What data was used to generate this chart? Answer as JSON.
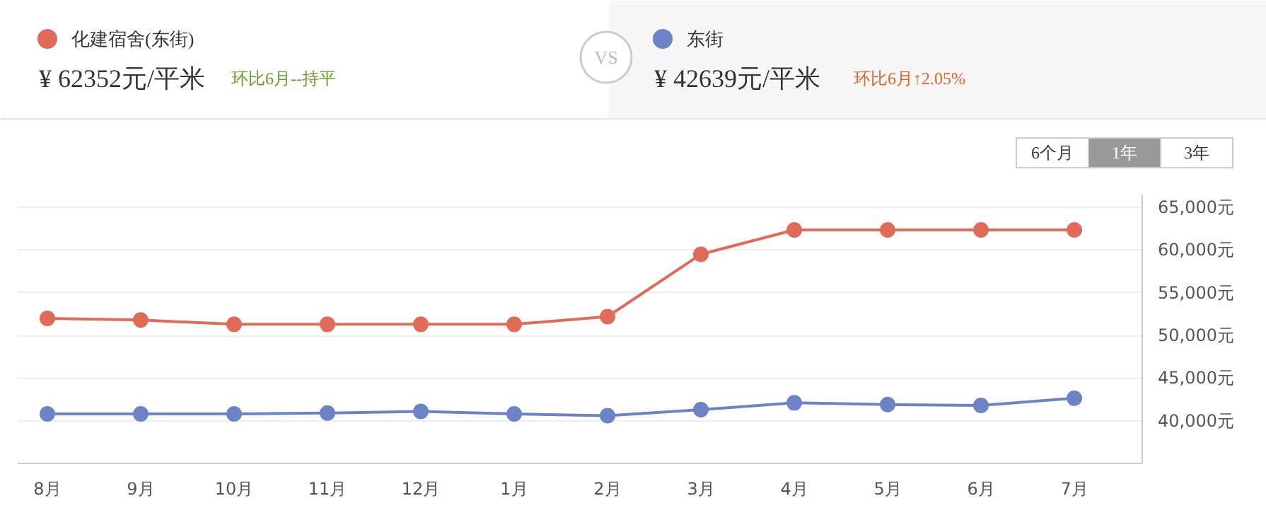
{
  "chart_data": {
    "type": "line",
    "categories": [
      "8月",
      "9月",
      "10月",
      "11月",
      "12月",
      "1月",
      "2月",
      "3月",
      "4月",
      "5月",
      "6月",
      "7月"
    ],
    "series": [
      {
        "name": "化建宿舍(东街)",
        "color": "#e06b58",
        "values": [
          52000,
          51800,
          51300,
          51300,
          51300,
          51300,
          52200,
          59500,
          62352,
          62352,
          62352,
          62352
        ]
      },
      {
        "name": "东街",
        "color": "#6c83c6",
        "values": [
          40800,
          40800,
          40800,
          40900,
          41100,
          40800,
          40600,
          41300,
          42100,
          41900,
          41800,
          42639
        ]
      }
    ],
    "ylim": [
      35000,
      66500
    ],
    "yticks": [
      {
        "value": 40000,
        "label": "40,000元"
      },
      {
        "value": 45000,
        "label": "45,000元"
      },
      {
        "value": 50000,
        "label": "50,000元"
      },
      {
        "value": 55000,
        "label": "55,000元"
      },
      {
        "value": 60000,
        "label": "60,000元"
      },
      {
        "value": 65000,
        "label": "65,000元"
      }
    ],
    "annotations": [
      "¥ 62352元/平米",
      "环比6月--持平",
      "¥ 42639元/平米",
      "环比6月↑2.05%",
      "VS",
      "6个月",
      "1年",
      "3年"
    ],
    "grid": "y",
    "legend": "top",
    "marker": "circle",
    "line_style": "solid"
  }
}
